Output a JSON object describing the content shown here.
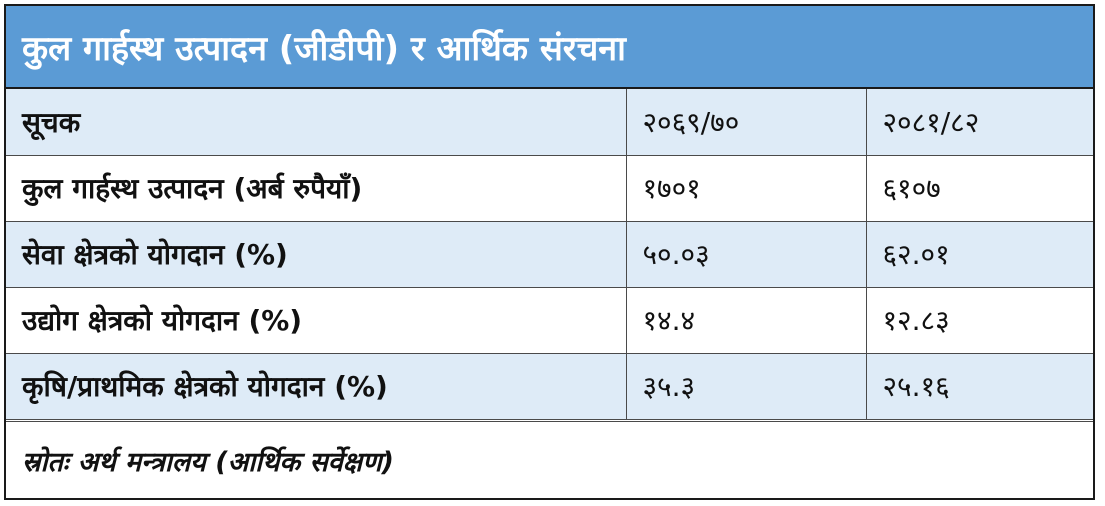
{
  "title": "कुल गार्हस्थ उत्पादन (जीडीपी) र आर्थिक संरचना",
  "header": {
    "indicator": "सूचक",
    "year1": "२०६९/७०",
    "year2": "२०८१/८२"
  },
  "rows": [
    {
      "label": "कुल गार्हस्थ उत्पादन (अर्ब रुपैयाँ)",
      "year1": "१७०१",
      "year2": "६१०७"
    },
    {
      "label": "सेवा क्षेत्रको योगदान (%)",
      "year1": "५०.०३",
      "year2": "६२.०१"
    },
    {
      "label": "उद्योग क्षेत्रको योगदान (%)",
      "year1": "१४.४",
      "year2": "१२.८३"
    },
    {
      "label": "कृषि/प्राथमिक क्षेत्रको योगदान (%)",
      "year1": "३५.३",
      "year2": "२५.१६"
    }
  ],
  "source": "स्रोतः अर्थ मन्त्रालय (आर्थिक सर्वेक्षण)",
  "colors": {
    "title_background": "#5b9bd5",
    "title_text": "#ffffff",
    "band_background": "#deebf7"
  }
}
